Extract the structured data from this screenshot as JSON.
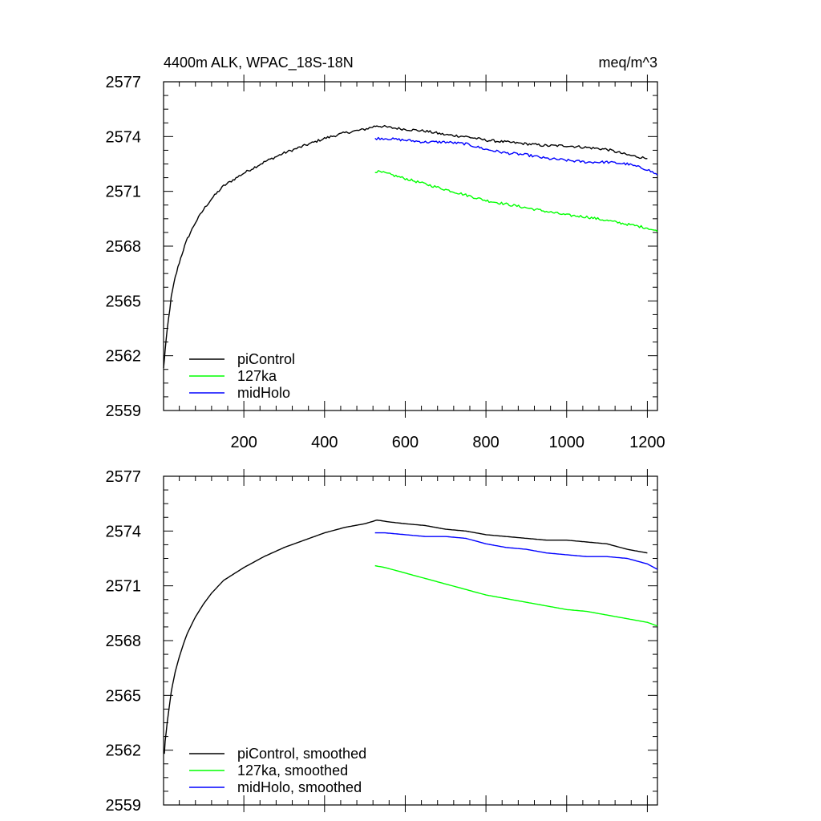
{
  "chart_data": [
    {
      "type": "line",
      "title": "4400m ALK, WPAC_18S-18N",
      "units": "meq/m^3",
      "xlim": [
        1,
        1225
      ],
      "ylim": [
        2559,
        2577
      ],
      "xticks": [
        200,
        400,
        600,
        800,
        1000,
        1200
      ],
      "xtick_labels": [
        "200",
        "400",
        "600",
        "800",
        "1000",
        "1200"
      ],
      "yticks": [
        2559,
        2562,
        2565,
        2568,
        2571,
        2574,
        2577
      ],
      "ytick_labels": [
        "2559",
        "2562",
        "2565",
        "2568",
        "2571",
        "2574",
        "2577"
      ],
      "legend_position": "bottom-left",
      "series": [
        {
          "name": "piControl",
          "color": "#000000",
          "x": [
            1,
            5,
            10,
            20,
            30,
            40,
            50,
            60,
            80,
            100,
            120,
            150,
            200,
            250,
            300,
            350,
            400,
            450,
            500,
            530,
            560,
            600,
            650,
            700,
            750,
            800,
            850,
            900,
            950,
            1000,
            1050,
            1100,
            1150,
            1200
          ],
          "y": [
            2561.3,
            2562.3,
            2563.4,
            2565.2,
            2566.3,
            2567.1,
            2567.8,
            2568.4,
            2569.3,
            2570.0,
            2570.6,
            2571.3,
            2572.0,
            2572.6,
            2573.1,
            2573.5,
            2573.9,
            2574.2,
            2574.4,
            2574.6,
            2574.5,
            2574.4,
            2574.3,
            2574.1,
            2574.0,
            2573.8,
            2573.7,
            2573.6,
            2573.5,
            2573.5,
            2573.4,
            2573.3,
            2573.0,
            2572.8
          ]
        },
        {
          "name": "127ka",
          "color": "#00ff00",
          "x": [
            525,
            550,
            600,
            650,
            700,
            750,
            800,
            850,
            900,
            950,
            1000,
            1050,
            1100,
            1150,
            1200,
            1225
          ],
          "y": [
            2572.1,
            2572.0,
            2571.7,
            2571.4,
            2571.1,
            2570.8,
            2570.5,
            2570.3,
            2570.1,
            2569.9,
            2569.7,
            2569.6,
            2569.4,
            2569.2,
            2569.0,
            2568.8
          ]
        },
        {
          "name": "midHolo",
          "color": "#0000ff",
          "x": [
            525,
            550,
            600,
            650,
            700,
            750,
            800,
            850,
            900,
            950,
            1000,
            1050,
            1100,
            1150,
            1200,
            1225
          ],
          "y": [
            2573.9,
            2573.9,
            2573.8,
            2573.7,
            2573.7,
            2573.6,
            2573.3,
            2573.1,
            2573.0,
            2572.8,
            2572.7,
            2572.6,
            2572.6,
            2572.5,
            2572.2,
            2571.9
          ]
        }
      ]
    },
    {
      "type": "line",
      "title": "",
      "units": "",
      "xlim": [
        1,
        1225
      ],
      "ylim": [
        2559,
        2577
      ],
      "xticks": [
        200,
        400,
        600,
        800,
        1000,
        1200
      ],
      "xtick_labels": [],
      "yticks": [
        2559,
        2562,
        2565,
        2568,
        2571,
        2574,
        2577
      ],
      "ytick_labels": [
        "2559",
        "2562",
        "2565",
        "2568",
        "2571",
        "2574",
        "2577"
      ],
      "legend_position": "bottom-left",
      "series": [
        {
          "name": "piControl, smoothed",
          "color": "#000000",
          "x": [
            3,
            5,
            10,
            20,
            30,
            40,
            50,
            60,
            80,
            100,
            120,
            150,
            200,
            250,
            300,
            350,
            400,
            450,
            500,
            530,
            560,
            600,
            650,
            700,
            750,
            800,
            850,
            900,
            950,
            1000,
            1050,
            1100,
            1150,
            1200
          ],
          "y": [
            2561.8,
            2562.5,
            2563.5,
            2565.2,
            2566.3,
            2567.1,
            2567.8,
            2568.4,
            2569.3,
            2570.0,
            2570.6,
            2571.3,
            2572.0,
            2572.6,
            2573.1,
            2573.5,
            2573.9,
            2574.2,
            2574.4,
            2574.6,
            2574.5,
            2574.4,
            2574.3,
            2574.1,
            2574.0,
            2573.8,
            2573.7,
            2573.6,
            2573.5,
            2573.5,
            2573.4,
            2573.3,
            2573.0,
            2572.8
          ]
        },
        {
          "name": "127ka, smoothed",
          "color": "#00ff00",
          "x": [
            525,
            550,
            600,
            650,
            700,
            750,
            800,
            850,
            900,
            950,
            1000,
            1050,
            1100,
            1150,
            1200,
            1225
          ],
          "y": [
            2572.1,
            2572.0,
            2571.7,
            2571.4,
            2571.1,
            2570.8,
            2570.5,
            2570.3,
            2570.1,
            2569.9,
            2569.7,
            2569.6,
            2569.4,
            2569.2,
            2569.0,
            2568.8
          ]
        },
        {
          "name": "midHolo, smoothed",
          "color": "#0000ff",
          "x": [
            525,
            550,
            600,
            650,
            700,
            750,
            800,
            850,
            900,
            950,
            1000,
            1050,
            1100,
            1150,
            1200,
            1225
          ],
          "y": [
            2573.9,
            2573.9,
            2573.8,
            2573.7,
            2573.7,
            2573.6,
            2573.3,
            2573.1,
            2573.0,
            2572.8,
            2572.7,
            2572.6,
            2572.6,
            2572.5,
            2572.2,
            2571.9
          ]
        }
      ]
    }
  ]
}
